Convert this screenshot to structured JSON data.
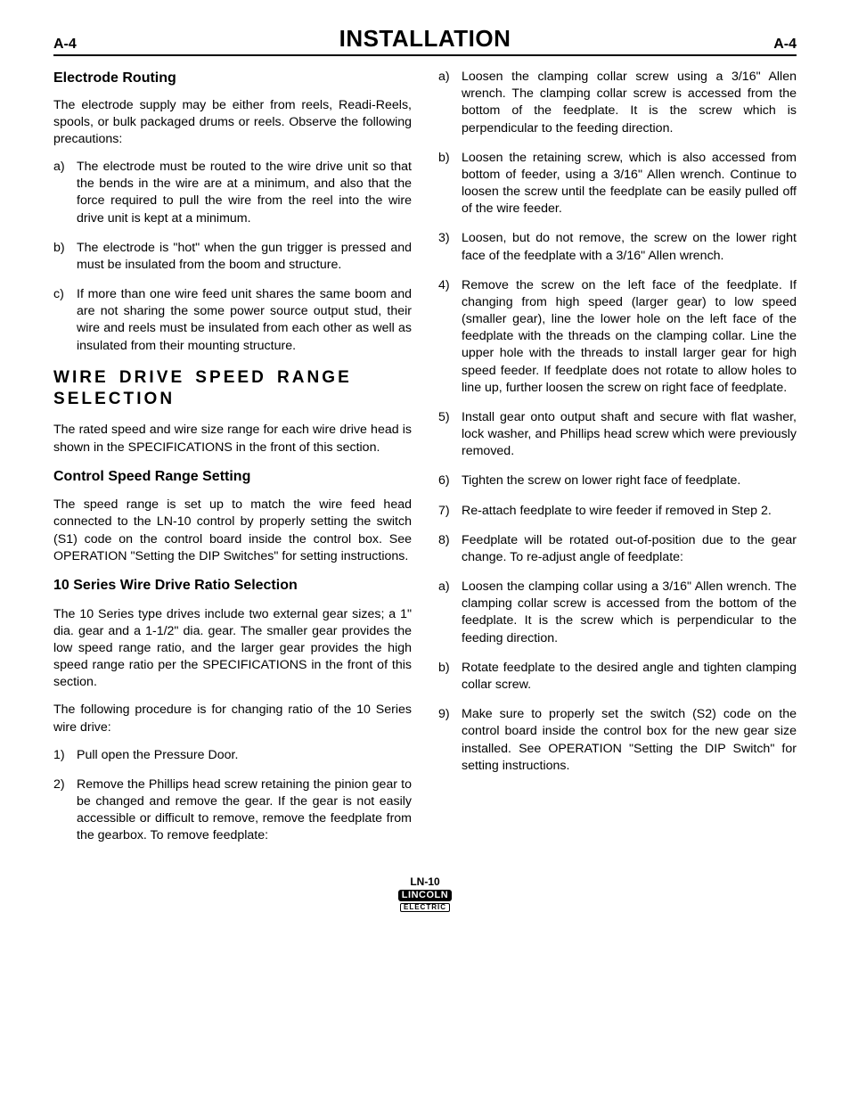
{
  "header": {
    "code_left": "A-4",
    "title": "INSTALLATION",
    "code_right": "A-4"
  },
  "left": {
    "h_electrode": "Electrode Routing",
    "p_electrode_intro": "The electrode supply may be either from reels, Readi-Reels, spools, or bulk packaged drums or reels. Observe the following precautions:",
    "electrode_list": [
      {
        "mk": "a)",
        "tx": "The electrode must be routed to the wire drive unit so that the bends in the wire are at a minimum, and also that the force required to pull the wire from the reel into the wire drive unit is kept at a minimum."
      },
      {
        "mk": "b)",
        "tx": "The electrode is \"hot\" when the gun trigger is pressed and must be insulated from the boom and structure."
      },
      {
        "mk": "c)",
        "tx": "If more than one wire feed unit shares the same boom and are not sharing the some power source output stud, their wire and reels must be insulated from each other as well as insulated from their mounting structure."
      }
    ],
    "h_wire_drive": "WIRE DRIVE SPEED RANGE SELECTION",
    "p_wire_drive": "The rated speed and wire size range for each wire drive head is shown in the SPECIFICATIONS in the front of this section.",
    "h_control_speed": "Control Speed Range Setting",
    "p_control_speed": "The speed range is set up to match the wire feed head connected to the LN-10 control by properly setting the switch (S1) code on the control board inside the control box. See OPERATION \"Setting the DIP Switches\" for setting instructions.",
    "h_10series": "10 Series Wire Drive Ratio Selection",
    "p_10series_1": "The 10 Series type drives include two external gear sizes; a 1\" dia. gear and a 1-1/2\" dia. gear. The smaller gear provides the low speed range ratio, and the larger gear provides the high speed range ratio per the SPECIFICATIONS in the front of this section.",
    "p_10series_2": "The following procedure is for changing ratio of the 10 Series wire drive:",
    "steps_left": [
      {
        "mk": "1)",
        "tx": "Pull open the Pressure Door."
      },
      {
        "mk": "2)",
        "tx": "Remove the Phillips head screw retaining the pinion gear to be changed and remove the gear. If the gear is not easily accessible or difficult to remove, remove the feedplate from the gearbox. To remove feedplate:"
      }
    ]
  },
  "right": {
    "step2_sub": [
      {
        "mk": "a)",
        "tx": "Loosen the clamping collar screw using a 3/16\" Allen wrench. The clamping collar screw is accessed from the bottom of the feedplate.  It is the screw which is perpendicular to the feeding direction."
      },
      {
        "mk": "b)",
        "tx": "Loosen the retaining screw, which is also accessed from bottom of feeder, using a 3/16\" Allen wrench. Continue to loosen the screw until the feedplate can be easily pulled off of the wire feeder."
      }
    ],
    "steps_right": [
      {
        "mk": "3)",
        "tx": "Loosen, but do not remove, the screw on the lower right face of the feedplate with a 3/16\" Allen wrench."
      },
      {
        "mk": "4)",
        "tx": "Remove the screw on the left face of the feedplate. If changing from high speed (larger gear) to low speed (smaller gear), line the lower hole on the left face of the feedplate with the threads on the clamping collar. Line the upper hole with the threads to install larger gear for high speed feeder. If feedplate does not rotate to allow holes to line up, further loosen the screw on right face of feedplate."
      },
      {
        "mk": "5)",
        "tx": "Install gear onto output shaft and secure with flat washer, lock washer, and Phillips head screw which were previously removed."
      },
      {
        "mk": "6)",
        "tx": "Tighten the screw on lower right face of feedplate."
      },
      {
        "mk": "7)",
        "tx": "Re-attach feedplate to wire feeder if removed in Step 2."
      },
      {
        "mk": "8)",
        "tx": "Feedplate will be rotated out-of-position due to the gear change.  To re-adjust angle of feedplate:"
      }
    ],
    "step8_sub": [
      {
        "mk": "a)",
        "tx": "Loosen the clamping collar using a 3/16\" Allen wrench.  The clamping collar screw is accessed from the bottom of the feedplate.  It is the screw which is perpendicular to the feeding direction."
      },
      {
        "mk": "b)",
        "tx": "Rotate feedplate to the desired angle and tighten clamping collar screw."
      }
    ],
    "step9": {
      "mk": "9)",
      "tx": "Make sure to properly set the switch (S2) code on the control board inside the control box for the new gear size installed. See OPERATION \"Setting the DIP Switch\" for setting instructions."
    }
  },
  "footer": {
    "model": "LN-10",
    "brand": "LINCOLN",
    "sub": "ELECTRIC"
  }
}
